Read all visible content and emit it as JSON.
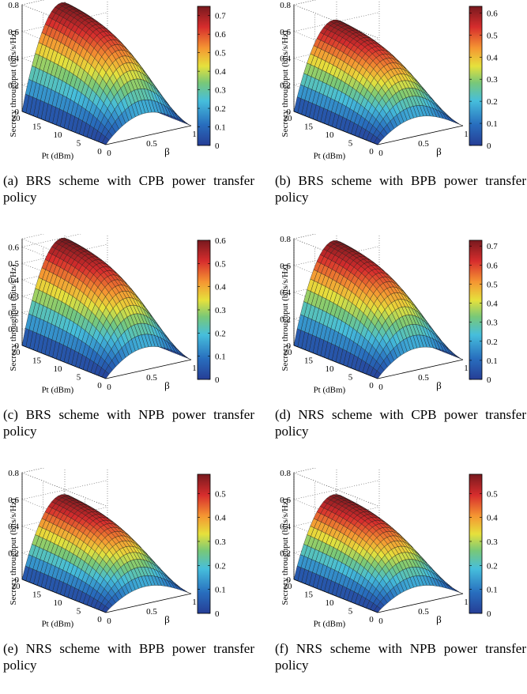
{
  "chart_data": [
    {
      "type": "surface3d",
      "caption": "(a) BRS scheme with CPB power transfer policy",
      "xlabel": "β",
      "ylabel": "Pt (dBm)",
      "zlabel": "Secrecy throughput (bits/s/Hz)",
      "xlim": [
        0,
        1
      ],
      "ylim": [
        0,
        20
      ],
      "x_ticks": [
        "0",
        "0.5",
        "1"
      ],
      "y_ticks": [
        "0",
        "5",
        "10",
        "15",
        "20"
      ],
      "z_ticks": [
        "0",
        "0.2",
        "0.4",
        "0.6",
        "0.8"
      ],
      "zlim": [
        0,
        0.8
      ],
      "peak_z": 0.75,
      "colorbar_ticks": [
        "0",
        "0.1",
        "0.2",
        "0.3",
        "0.4",
        "0.5",
        "0.6",
        "0.7"
      ],
      "colorbar_range": [
        0,
        0.75
      ]
    },
    {
      "type": "surface3d",
      "caption": "(b) BRS scheme with BPB power transfer policy",
      "xlabel": "β",
      "ylabel": "Pt (dBm)",
      "zlabel": "Secrecy throughput (bits/s/Hz)",
      "xlim": [
        0,
        1
      ],
      "ylim": [
        0,
        20
      ],
      "x_ticks": [
        "0",
        "0.5",
        "1"
      ],
      "y_ticks": [
        "0",
        "5",
        "10",
        "15",
        "20"
      ],
      "z_ticks": [
        "0",
        "0.2",
        "0.4",
        "0.6",
        "0.8"
      ],
      "zlim": [
        0,
        0.8
      ],
      "peak_z": 0.62,
      "colorbar_ticks": [
        "0",
        "0.1",
        "0.2",
        "0.3",
        "0.4",
        "0.5",
        "0.6"
      ],
      "colorbar_range": [
        0,
        0.63
      ]
    },
    {
      "type": "surface3d",
      "caption": "(c) BRS scheme with NPB power transfer policy",
      "xlabel": "β",
      "ylabel": "Pt (dBm)",
      "zlabel": "Secrecy throughput (bits/s/Hz)",
      "xlim": [
        0,
        1
      ],
      "ylim": [
        0,
        20
      ],
      "x_ticks": [
        "0",
        "0.5",
        "1"
      ],
      "y_ticks": [
        "0",
        "5",
        "10",
        "15",
        "20"
      ],
      "z_ticks": [
        "0",
        "0.1",
        "0.2",
        "0.3",
        "0.4",
        "0.5",
        "0.6"
      ],
      "zlim": [
        0,
        0.65
      ],
      "peak_z": 0.6,
      "colorbar_ticks": [
        "0",
        "0.1",
        "0.2",
        "0.3",
        "0.4",
        "0.5",
        "0.6"
      ],
      "colorbar_range": [
        0,
        0.6
      ]
    },
    {
      "type": "surface3d",
      "caption": "(d) NRS scheme with CPB power transfer policy",
      "xlabel": "β",
      "ylabel": "Pt (dBm)",
      "zlabel": "Secrecy throughput (bits/s/Hz)",
      "xlim": [
        0,
        1
      ],
      "ylim": [
        0,
        20
      ],
      "x_ticks": [
        "0",
        "0.5",
        "1"
      ],
      "y_ticks": [
        "0",
        "5",
        "10",
        "15",
        "20"
      ],
      "z_ticks": [
        "0",
        "0.2",
        "0.4",
        "0.6",
        "0.8"
      ],
      "zlim": [
        0,
        0.8
      ],
      "peak_z": 0.72,
      "colorbar_ticks": [
        "0",
        "0.1",
        "0.2",
        "0.3",
        "0.4",
        "0.5",
        "0.6",
        "0.7"
      ],
      "colorbar_range": [
        0,
        0.73
      ]
    },
    {
      "type": "surface3d",
      "caption": "(e) NRS scheme with BPB power transfer policy",
      "xlabel": "β",
      "ylabel": "Pt (dBm)",
      "zlabel": "Secrecy throughput (bits/s/Hz)",
      "xlim": [
        0,
        1
      ],
      "ylim": [
        0,
        20
      ],
      "x_ticks": [
        "0",
        "0.5",
        "1"
      ],
      "y_ticks": [
        "0",
        "5",
        "10",
        "15",
        "20"
      ],
      "z_ticks": [
        "0",
        "0.2",
        "0.4",
        "0.6",
        "0.8"
      ],
      "zlim": [
        0,
        0.8
      ],
      "peak_z": 0.57,
      "colorbar_ticks": [
        "0",
        "0.1",
        "0.2",
        "0.3",
        "0.4",
        "0.5"
      ],
      "colorbar_range": [
        0,
        0.58
      ]
    },
    {
      "type": "surface3d",
      "caption": "(f) NRS scheme with NPB power transfer policy",
      "xlabel": "β",
      "ylabel": "Pt (dBm)",
      "zlabel": "Secrecy throughput (bits/s/Hz)",
      "xlim": [
        0,
        1
      ],
      "ylim": [
        0,
        20
      ],
      "x_ticks": [
        "0",
        "0.5",
        "1"
      ],
      "y_ticks": [
        "0",
        "5",
        "10",
        "15",
        "20"
      ],
      "z_ticks": [
        "0",
        "0.2",
        "0.4",
        "0.6",
        "0.8"
      ],
      "zlim": [
        0,
        0.8
      ],
      "peak_z": 0.57,
      "colorbar_ticks": [
        "0",
        "0.1",
        "0.2",
        "0.3",
        "0.4",
        "0.5"
      ],
      "colorbar_range": [
        0,
        0.58
      ]
    }
  ]
}
